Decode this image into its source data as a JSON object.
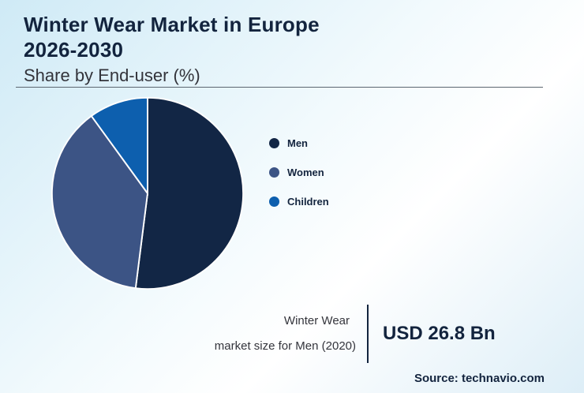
{
  "header": {
    "title_line1": "Winter Wear Market in Europe",
    "title_line2": "2026-2030",
    "subtitle": "Share by End-user (%)"
  },
  "chart_data": {
    "type": "pie",
    "title": "Winter Wear Market in Europe 2026-2030",
    "subtitle": "Share by End-user (%)",
    "categories": [
      "Men",
      "Women",
      "Children"
    ],
    "values": [
      52,
      38,
      10
    ],
    "colors": [
      "#122645",
      "#3c5485",
      "#0d5fae"
    ],
    "legend_position": "right",
    "start_angle_deg": 0,
    "direction": "clockwise",
    "slice_border_color": "#ffffff"
  },
  "annotation": {
    "label_line1": "Winter Wear",
    "label_line2": "market size for Men (2020)",
    "value": "USD 26.8 Bn"
  },
  "footer": {
    "source": "Source: technavio.com"
  },
  "colors": {
    "title_text": "#13243e",
    "accent_navy": "#122645",
    "background_tint": "#cfeaf6"
  }
}
